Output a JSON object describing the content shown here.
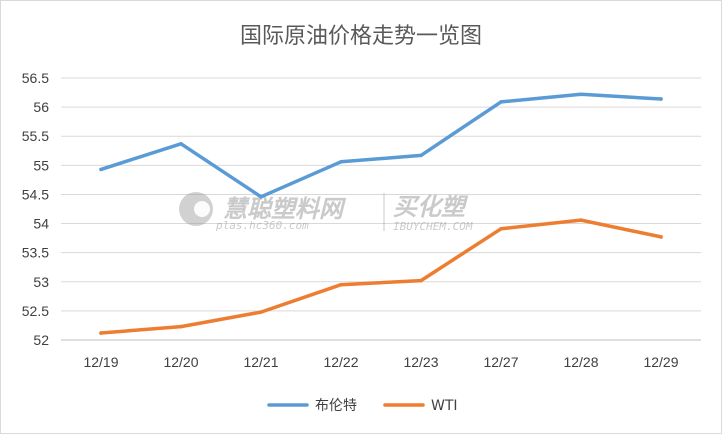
{
  "chart_data": {
    "type": "line",
    "title": "国际原油价格走势一览图",
    "xlabel": "",
    "ylabel": "",
    "categories": [
      "12/19",
      "12/20",
      "12/21",
      "12/22",
      "12/23",
      "12/27",
      "12/28",
      "12/29"
    ],
    "ylim": [
      52,
      56.5
    ],
    "yticks": [
      52,
      52.5,
      53,
      53.5,
      54,
      54.5,
      55,
      55.5,
      56,
      56.5
    ],
    "grid": true,
    "legend": "bottom",
    "series": [
      {
        "name": "布伦特",
        "color": "#5b9bd5",
        "values": [
          54.93,
          55.37,
          54.46,
          55.06,
          55.17,
          56.09,
          56.22,
          56.14
        ]
      },
      {
        "name": "WTI",
        "color": "#ed7d31",
        "values": [
          52.12,
          52.23,
          52.48,
          52.95,
          53.02,
          53.91,
          54.06,
          53.77
        ]
      }
    ]
  },
  "watermark": {
    "left_text": "慧聪塑料网",
    "left_sub": "plas.hc360.com",
    "right_text": "买化塑",
    "right_sub": "IBUYCHEM.COM"
  }
}
